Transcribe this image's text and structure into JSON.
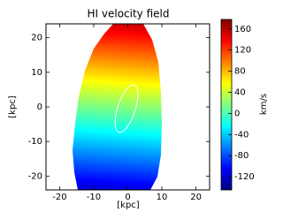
{
  "chart_data": {
    "type": "image",
    "title": "HI velocity field",
    "xlabel": "[kpc]",
    "ylabel": "[kpc]",
    "xlim": [
      -24,
      24
    ],
    "xticks": [
      -20,
      -10,
      0,
      10,
      20
    ],
    "ylim": [
      -24,
      24
    ],
    "yticks": [
      -20,
      -10,
      0,
      10,
      20
    ],
    "colorbar": {
      "label": "km/s",
      "lim": [
        -145,
        178
      ],
      "ticks": [
        -120,
        -80,
        -40,
        0,
        40,
        80,
        120,
        160
      ]
    },
    "colormap": [
      "#00007f",
      "#0000ff",
      "#007fff",
      "#00ffff",
      "#7fff7f",
      "#ffff00",
      "#ff7f00",
      "#ff0000",
      "#7f0000"
    ]
  }
}
